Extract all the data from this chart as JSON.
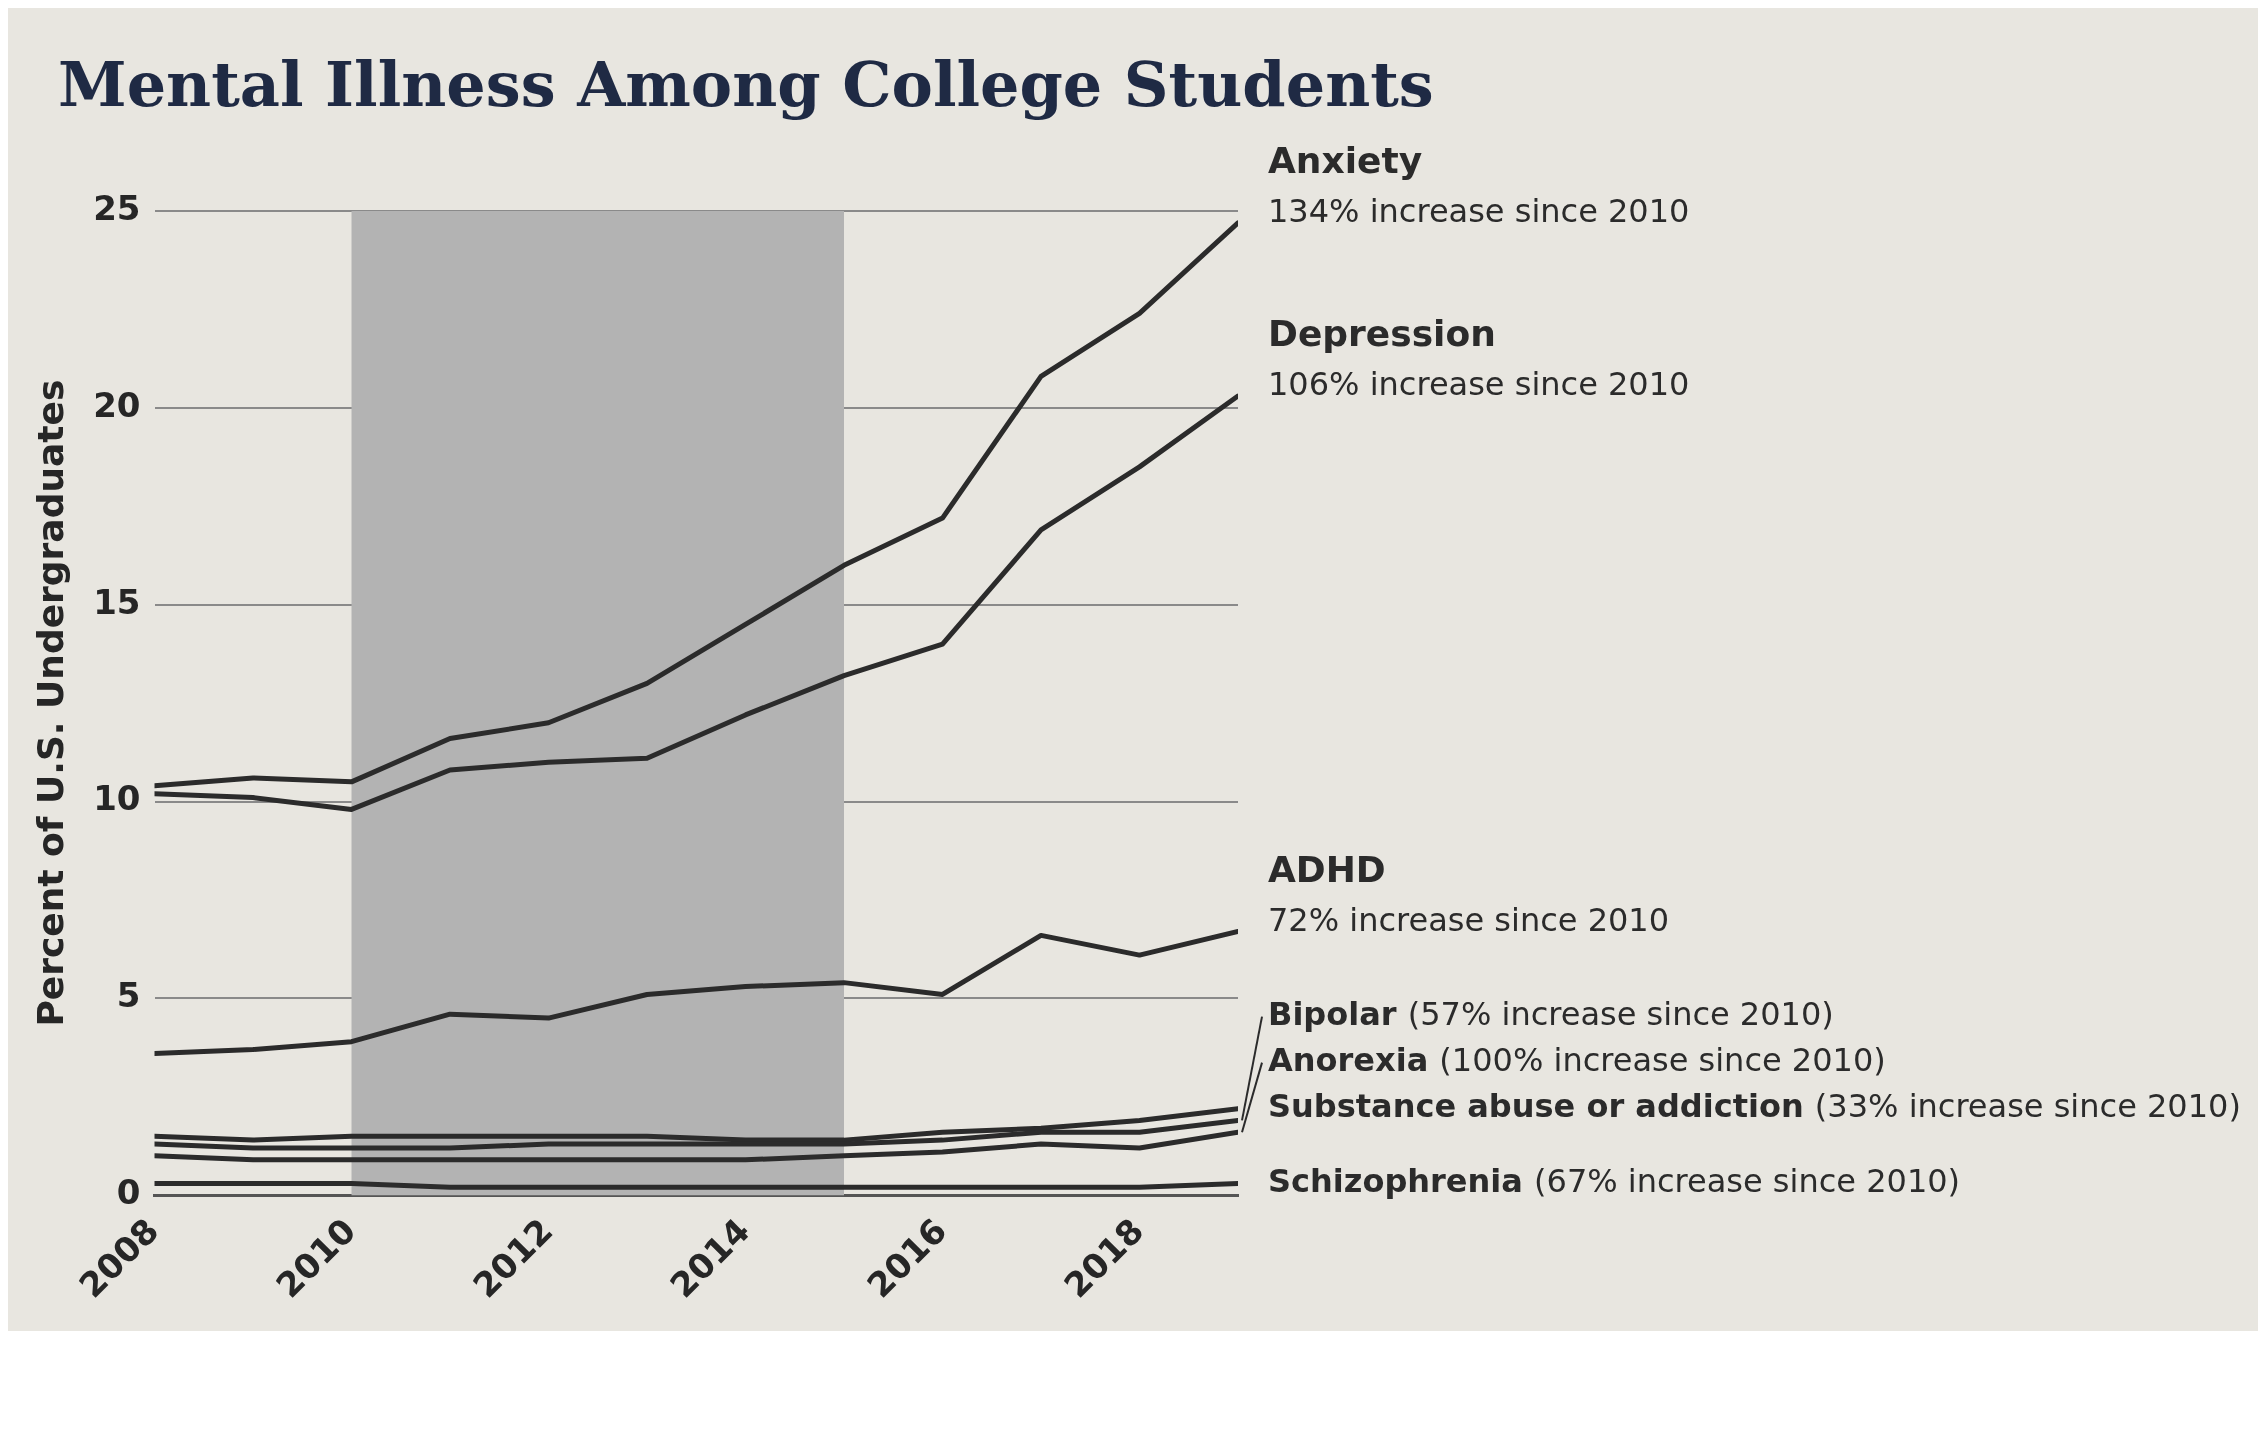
{
  "chart_data": {
    "type": "line",
    "title": "Mental Illness Among College Students",
    "ylabel": "Percent of U.S. Undergraduates",
    "x": [
      2008,
      2009,
      2010,
      2011,
      2012,
      2013,
      2014,
      2015,
      2016,
      2017,
      2018,
      2019
    ],
    "series": [
      {
        "name": "Anxiety",
        "color": "#2b2b2b",
        "values": [
          10.4,
          10.6,
          10.5,
          11.6,
          12.0,
          13.0,
          14.5,
          16.0,
          17.2,
          20.8,
          22.4,
          24.7
        ]
      },
      {
        "name": "Depression",
        "color": "#2b2b2b",
        "values": [
          10.2,
          10.1,
          9.8,
          10.8,
          11.0,
          11.1,
          12.2,
          13.2,
          14.0,
          16.9,
          18.5,
          20.3
        ]
      },
      {
        "name": "ADHD",
        "color": "#2b2b2b",
        "values": [
          3.6,
          3.7,
          3.9,
          4.6,
          4.5,
          5.1,
          5.3,
          5.4,
          5.1,
          6.6,
          6.1,
          6.7
        ]
      },
      {
        "name": "Bipolar",
        "color": "#2b2b2b",
        "values": [
          1.3,
          1.2,
          1.2,
          1.2,
          1.3,
          1.3,
          1.3,
          1.3,
          1.4,
          1.6,
          1.6,
          1.9
        ]
      },
      {
        "name": "Anorexia",
        "color": "#2b2b2b",
        "values": [
          1.0,
          0.9,
          0.9,
          0.9,
          0.9,
          0.9,
          0.9,
          1.0,
          1.1,
          1.3,
          1.2,
          1.6
        ]
      },
      {
        "name": "Substance abuse or addiction",
        "color": "#2b2b2b",
        "values": [
          1.5,
          1.4,
          1.5,
          1.5,
          1.5,
          1.5,
          1.4,
          1.4,
          1.6,
          1.7,
          1.9,
          2.2
        ]
      },
      {
        "name": "Schizophrenia",
        "color": "#2b2b2b",
        "values": [
          0.3,
          0.3,
          0.3,
          0.2,
          0.2,
          0.2,
          0.2,
          0.2,
          0.2,
          0.2,
          0.2,
          0.3
        ]
      }
    ],
    "annotations": [
      "134% increase since 2010",
      "106% increase since 2010",
      "72% increase since 2010",
      "(57% increase since 2010)",
      "(100% increase since 2010)",
      "(33% increase since 2010)",
      "(67% increase since 2010)"
    ],
    "bands": [
      {
        "axis": "x",
        "from": 2010,
        "to": 2015,
        "color": "#b3b3b3"
      }
    ],
    "xlim": [
      2008,
      2019
    ],
    "xticks": [
      2008,
      2010,
      2012,
      2014,
      2016,
      2018
    ],
    "ylim": [
      0,
      25
    ],
    "yticks": [
      0,
      5,
      10,
      15,
      20,
      25
    ],
    "grid": "y",
    "legend": false,
    "marker": "none",
    "line_style": "solid"
  }
}
